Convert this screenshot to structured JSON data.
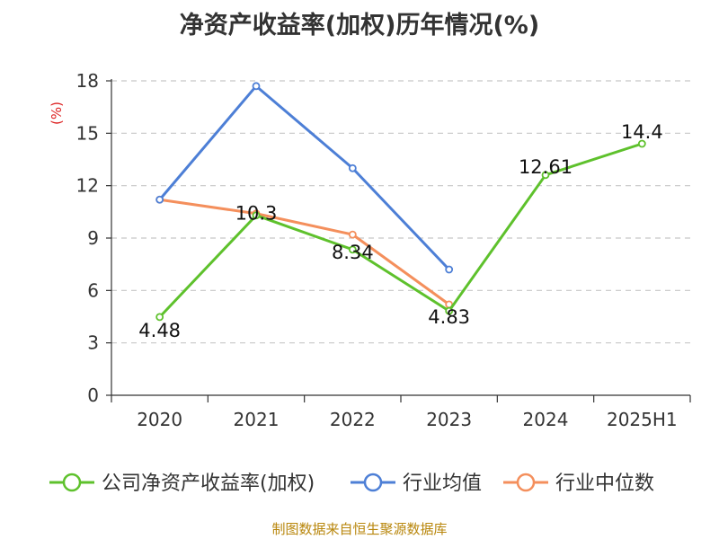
{
  "chart_data": {
    "type": "line",
    "title": "净资产收益率(加权)历年情况(%)",
    "ylabel": "(%)",
    "xlabel": "",
    "categories": [
      "2020",
      "2021",
      "2022",
      "2023",
      "2024",
      "2025H1"
    ],
    "ylim": [
      0,
      18
    ],
    "yticks": [
      0,
      3,
      6,
      9,
      12,
      15,
      18
    ],
    "grid": true,
    "legend_position": "bottom",
    "series": [
      {
        "name": "公司净资产收益率(加权)",
        "color": "#5ec12c",
        "values": [
          4.48,
          10.3,
          8.34,
          4.83,
          12.61,
          14.4
        ],
        "data_labels": [
          "4.48",
          "10.3",
          "8.34",
          "4.83",
          "12.61",
          "14.4"
        ]
      },
      {
        "name": "行业均值",
        "color": "#4d7fd6",
        "values": [
          11.2,
          17.7,
          13.0,
          7.2,
          null,
          null
        ]
      },
      {
        "name": "行业中位数",
        "color": "#f48f5c",
        "values": [
          11.2,
          10.4,
          9.2,
          5.2,
          null,
          null
        ]
      }
    ]
  },
  "source": "制图数据来自恒生聚源数据库"
}
